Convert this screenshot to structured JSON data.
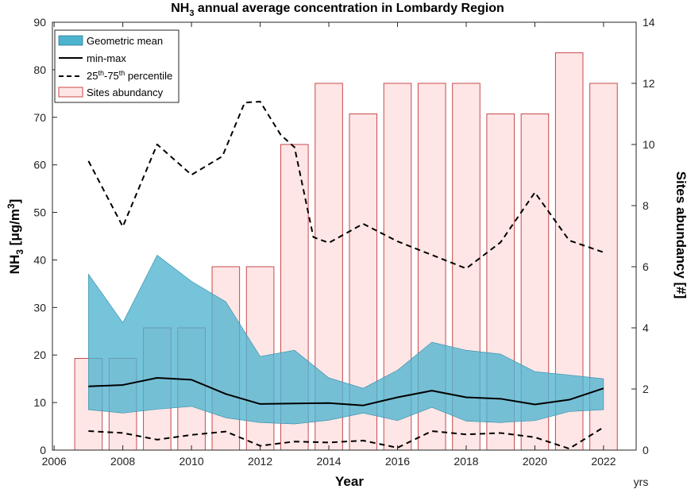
{
  "chart_data": {
    "type": "area",
    "title_main": "NH",
    "title_sub": "3",
    "title_rest": " annual average concentration in Lombardy Region",
    "xlabel": "Year",
    "x_unit": "yrs",
    "ylabel_main": "NH",
    "ylabel_sub": "3",
    "ylabel_unit": " [μg/m",
    "ylabel_sup": "3",
    "ylabel_close": "]",
    "y2label": "Sites abundancy [#]",
    "xlim": [
      2005.95,
      2022.95
    ],
    "ylim": [
      0,
      90
    ],
    "y2lim": [
      0,
      14
    ],
    "xticks": [
      2006,
      2008,
      2010,
      2012,
      2014,
      2016,
      2018,
      2020,
      2022
    ],
    "yticks": [
      0,
      10,
      20,
      30,
      40,
      50,
      60,
      70,
      80,
      90
    ],
    "y2ticks": [
      0,
      2,
      4,
      6,
      8,
      10,
      12,
      14
    ],
    "years": [
      2007,
      2008,
      2009,
      2010,
      2011,
      2012,
      2013,
      2014,
      2015,
      2016,
      2017,
      2018,
      2019,
      2020,
      2021,
      2022
    ],
    "geometric_mean_band": {
      "upper": [
        37,
        26.8,
        41,
        35.5,
        31.2,
        19.7,
        21,
        15.2,
        13,
        16.8,
        22.7,
        21,
        20.2,
        16.5,
        15.8,
        15
      ],
      "lower": [
        8.5,
        7.8,
        8.6,
        9.2,
        6.8,
        5.8,
        5.5,
        6.3,
        7.8,
        6.2,
        9,
        6.1,
        5.8,
        6.2,
        8.1,
        8.5
      ]
    },
    "central_line": [
      13.4,
      13.7,
      15.2,
      14.8,
      11.8,
      9.7,
      9.8,
      9.9,
      9.4,
      11.1,
      12.5,
      11.1,
      10.8,
      9.6,
      10.6,
      13
    ],
    "percentile_upper": [
      60.8,
      47,
      64.3,
      57.9,
      61.8,
      73.1,
      73.3,
      66.3,
      63.7,
      44.8,
      43.6,
      47.6,
      43.9,
      38.2,
      43.7,
      54.2,
      44.1,
      41.6
    ],
    "percentile_upper_years": [
      2007,
      2008,
      2009,
      2010,
      2010.9,
      2011.55,
      2012,
      2012.6,
      2013,
      2013.55,
      2014,
      2015,
      2016,
      2018,
      2019,
      2020,
      2021,
      2022
    ],
    "percentile_lower": [
      4,
      3.6,
      2.2,
      3.2,
      3.9,
      0.9,
      1.8,
      1.6,
      2,
      0.5,
      4,
      3.3,
      3.6,
      2.7,
      0.3,
      4.8
    ],
    "sites_abundancy": [
      3,
      3,
      4,
      4,
      6,
      6,
      10,
      12,
      11,
      12,
      12,
      12,
      11,
      11,
      13,
      12
    ],
    "legend": [
      "Geometric mean",
      "min-max",
      "25",
      "th",
      "-75",
      "th",
      " percentile",
      "Sites abundancy"
    ],
    "legend_position": "top-left",
    "colors": {
      "band_fill": "#4eb3cf",
      "bar_fill": "#ffe6e6",
      "bar_edge": "#c8494b",
      "line": "#000000"
    }
  }
}
